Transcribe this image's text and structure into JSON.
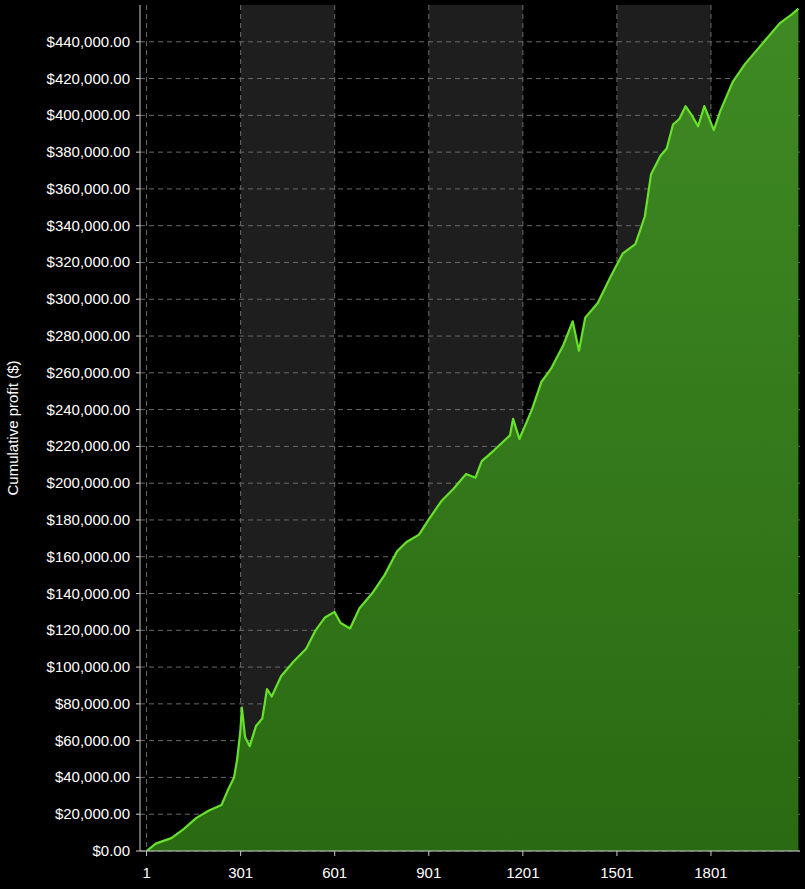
{
  "chart_data": {
    "type": "area",
    "y_label": "Cumulative profit ($)",
    "color": "#66e22a",
    "grid": true,
    "xlim": [
      -20,
      2085
    ],
    "ylim": [
      0,
      460000
    ],
    "xticks": [
      1,
      301,
      601,
      901,
      1201,
      1501,
      1801
    ],
    "yticks": [
      {
        "value": 0,
        "label": "$0.00"
      },
      {
        "value": 20000,
        "label": "$20,000.00"
      },
      {
        "value": 40000,
        "label": "$40,000.00"
      },
      {
        "value": 60000,
        "label": "$60,000.00"
      },
      {
        "value": 80000,
        "label": "$80,000.00"
      },
      {
        "value": 100000,
        "label": "$100,000.00"
      },
      {
        "value": 120000,
        "label": "$120,000.00"
      },
      {
        "value": 140000,
        "label": "$140,000.00"
      },
      {
        "value": 160000,
        "label": "$160,000.00"
      },
      {
        "value": 180000,
        "label": "$180,000.00"
      },
      {
        "value": 200000,
        "label": "$200,000.00"
      },
      {
        "value": 220000,
        "label": "$220,000.00"
      },
      {
        "value": 240000,
        "label": "$240,000.00"
      },
      {
        "value": 260000,
        "label": "$260,000.00"
      },
      {
        "value": 280000,
        "label": "$280,000.00"
      },
      {
        "value": 300000,
        "label": "$300,000.00"
      },
      {
        "value": 320000,
        "label": "$320,000.00"
      },
      {
        "value": 340000,
        "label": "$340,000.00"
      },
      {
        "value": 360000,
        "label": "$360,000.00"
      },
      {
        "value": 380000,
        "label": "$380,000.00"
      },
      {
        "value": 400000,
        "label": "$400,000.00"
      },
      {
        "value": 420000,
        "label": "$420,000.00"
      },
      {
        "value": 440000,
        "label": "$440,000.00"
      }
    ],
    "x": [
      1,
      30,
      80,
      120,
      160,
      200,
      240,
      260,
      280,
      290,
      300,
      305,
      315,
      330,
      350,
      370,
      385,
      400,
      430,
      470,
      510,
      540,
      570,
      600,
      620,
      650,
      680,
      720,
      760,
      800,
      830,
      870,
      900,
      940,
      980,
      1020,
      1050,
      1070,
      1110,
      1160,
      1170,
      1190,
      1230,
      1260,
      1290,
      1330,
      1360,
      1380,
      1400,
      1440,
      1480,
      1520,
      1560,
      1590,
      1610,
      1640,
      1660,
      1680,
      1700,
      1720,
      1740,
      1760,
      1780,
      1810,
      1830,
      1870,
      1910,
      1950,
      1990,
      2020,
      2060,
      2080
    ],
    "values": [
      0,
      4000,
      7000,
      12000,
      18000,
      22000,
      25000,
      33000,
      40000,
      50000,
      65000,
      78000,
      62000,
      57000,
      68000,
      72000,
      88000,
      84000,
      95000,
      103000,
      110000,
      120000,
      127000,
      130000,
      124000,
      121000,
      132000,
      140000,
      150000,
      163000,
      168000,
      172000,
      180000,
      190000,
      197000,
      205000,
      203000,
      212000,
      218000,
      226000,
      235000,
      224000,
      240000,
      255000,
      262000,
      275000,
      288000,
      272000,
      290000,
      298000,
      312000,
      325000,
      330000,
      345000,
      368000,
      378000,
      382000,
      395000,
      398000,
      405000,
      400000,
      394000,
      405000,
      392000,
      402000,
      418000,
      428000,
      436000,
      444000,
      450000,
      455000,
      458000
    ]
  }
}
